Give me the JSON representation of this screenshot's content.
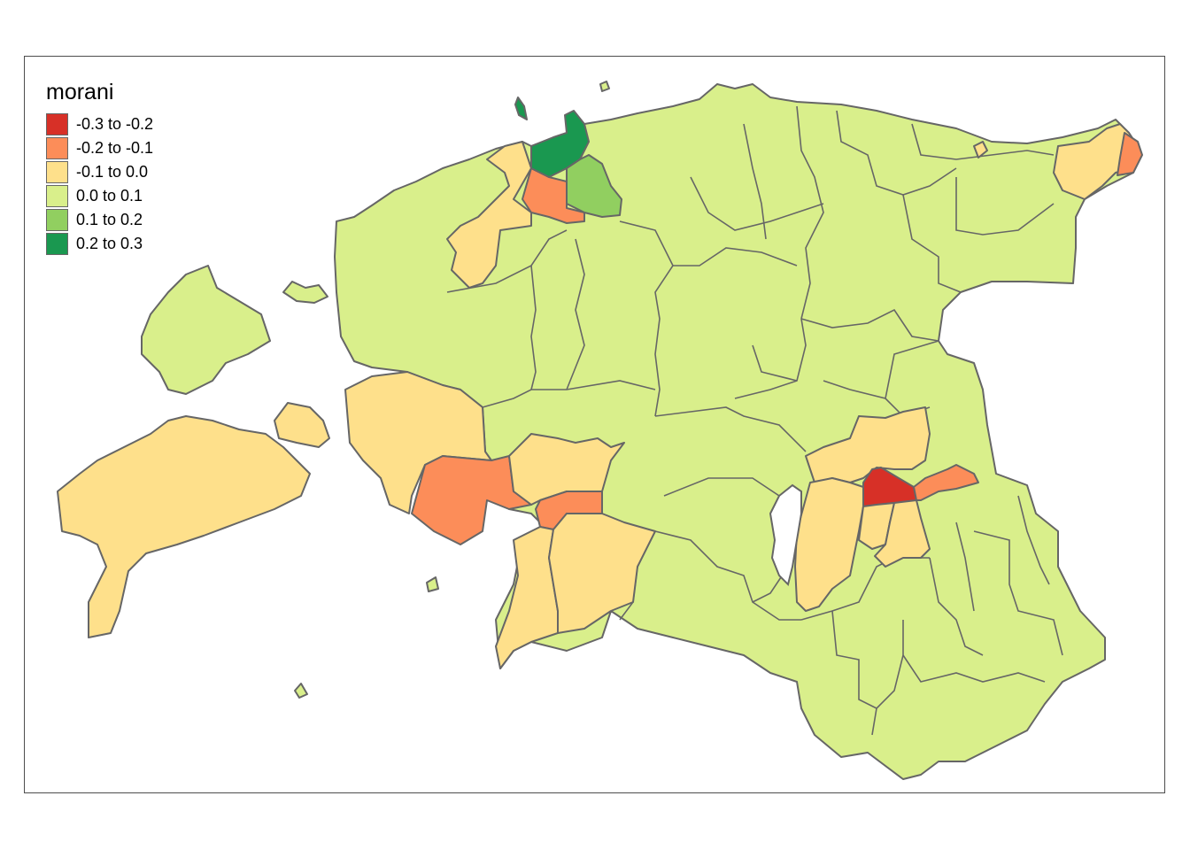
{
  "map": {
    "legend_title": "morani",
    "legend": [
      {
        "label": "-0.3 to -0.2",
        "color": "#d73027"
      },
      {
        "label": "-0.2 to -0.1",
        "color": "#fc8d59"
      },
      {
        "label": "-0.1 to 0.0",
        "color": "#fee08b"
      },
      {
        "label": "0.0 to 0.1",
        "color": "#d9ef8b"
      },
      {
        "label": "0.1 to 0.2",
        "color": "#91cf60"
      },
      {
        "label": "0.2 to 0.3",
        "color": "#1a9850"
      }
    ],
    "border_color": "#666666"
  }
}
